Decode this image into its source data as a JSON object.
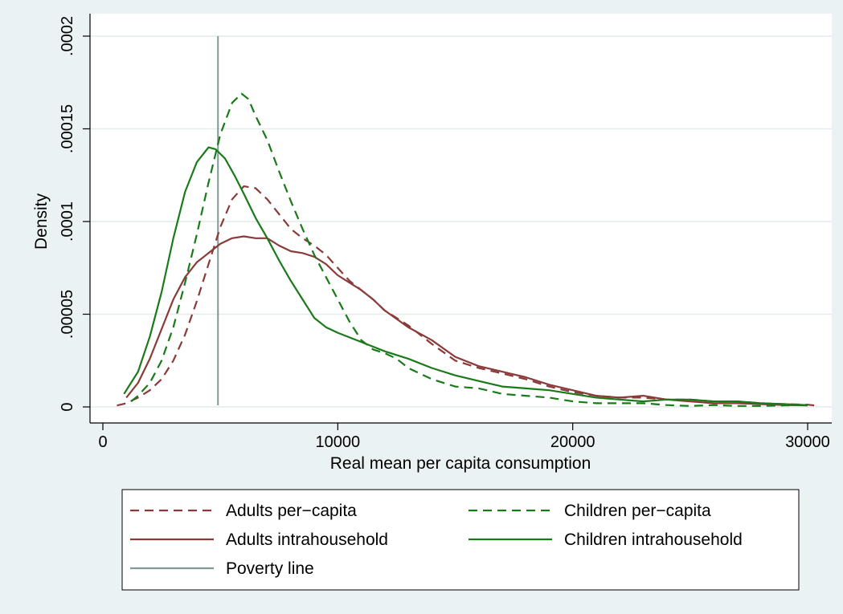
{
  "chart_data": {
    "type": "line",
    "xlabel": "Real mean per capita consumption",
    "ylabel": "Density",
    "xlim": [
      0,
      30000
    ],
    "ylim": [
      0,
      0.0002
    ],
    "x_ticks": [
      {
        "value": 0,
        "label": "0"
      },
      {
        "value": 10000,
        "label": "10000"
      },
      {
        "value": 20000,
        "label": "20000"
      },
      {
        "value": 30000,
        "label": "30000"
      }
    ],
    "y_ticks": [
      {
        "value": 0,
        "label": "0"
      },
      {
        "value": 5e-05,
        "label": ".00005"
      },
      {
        "value": 0.0001,
        "label": ".0001"
      },
      {
        "value": 0.00015,
        "label": ".00015"
      },
      {
        "value": 0.0002,
        "label": ".0002"
      }
    ],
    "grid": true,
    "legend_position": "bottom",
    "vline": {
      "name": "Poverty line",
      "x": 4900,
      "color": "#7f9a94"
    },
    "series": [
      {
        "name": "Adults per−capita",
        "color": "#8b3a3a",
        "dash": "dashed",
        "points": [
          [
            600,
            8e-07
          ],
          [
            1000,
            2e-06
          ],
          [
            1500,
            5e-06
          ],
          [
            2000,
            9e-06
          ],
          [
            2500,
            1.5e-05
          ],
          [
            3000,
            2.5e-05
          ],
          [
            3500,
            3.9e-05
          ],
          [
            4000,
            5.7e-05
          ],
          [
            4500,
            7.7e-05
          ],
          [
            5000,
            9.7e-05
          ],
          [
            5500,
            0.000112
          ],
          [
            6000,
            0.000119
          ],
          [
            6500,
            0.000118
          ],
          [
            7000,
            0.000112
          ],
          [
            7500,
            0.000104
          ],
          [
            8000,
            9.6e-05
          ],
          [
            8500,
            9.1e-05
          ],
          [
            9000,
            8.7e-05
          ],
          [
            9500,
            8.2e-05
          ],
          [
            10000,
            7.5e-05
          ],
          [
            10500,
            6.8e-05
          ],
          [
            11000,
            6.3e-05
          ],
          [
            11500,
            5.8e-05
          ],
          [
            12000,
            5.2e-05
          ],
          [
            13000,
            4.4e-05
          ],
          [
            14000,
            3.4e-05
          ],
          [
            15000,
            2.5e-05
          ],
          [
            16000,
            2.1e-05
          ],
          [
            17000,
            1.8e-05
          ],
          [
            18000,
            1.5e-05
          ],
          [
            19000,
            1.1e-05
          ],
          [
            20000,
            8e-06
          ],
          [
            21000,
            6e-06
          ],
          [
            22000,
            5e-06
          ],
          [
            23000,
            5e-06
          ],
          [
            24000,
            4e-06
          ],
          [
            25000,
            4e-06
          ],
          [
            26000,
            3e-06
          ],
          [
            27000,
            3e-06
          ],
          [
            28000,
            2e-06
          ],
          [
            29000,
            1.5e-06
          ],
          [
            30000,
            1.2e-06
          ],
          [
            30500,
            5e-07
          ]
        ]
      },
      {
        "name": "Adults intrahousehold",
        "color": "#8b3a3a",
        "dash": "solid",
        "points": [
          [
            1000,
            5e-06
          ],
          [
            1500,
            1.3e-05
          ],
          [
            2000,
            2.6e-05
          ],
          [
            2500,
            4.2e-05
          ],
          [
            3000,
            5.8e-05
          ],
          [
            3500,
            7e-05
          ],
          [
            4000,
            7.8e-05
          ],
          [
            4500,
            8.3e-05
          ],
          [
            5000,
            8.8e-05
          ],
          [
            5500,
            9.1e-05
          ],
          [
            6000,
            9.2e-05
          ],
          [
            6500,
            9.1e-05
          ],
          [
            7000,
            9.1e-05
          ],
          [
            7500,
            8.7e-05
          ],
          [
            8000,
            8.4e-05
          ],
          [
            8500,
            8.3e-05
          ],
          [
            9000,
            8.1e-05
          ],
          [
            9500,
            7.7e-05
          ],
          [
            10000,
            7.1e-05
          ],
          [
            10500,
            6.7e-05
          ],
          [
            11000,
            6.3e-05
          ],
          [
            11500,
            5.8e-05
          ],
          [
            12000,
            5.2e-05
          ],
          [
            13000,
            4.3e-05
          ],
          [
            14000,
            3.6e-05
          ],
          [
            15000,
            2.7e-05
          ],
          [
            16000,
            2.2e-05
          ],
          [
            17000,
            1.9e-05
          ],
          [
            18000,
            1.6e-05
          ],
          [
            19000,
            1.2e-05
          ],
          [
            20000,
            9e-06
          ],
          [
            21000,
            6e-06
          ],
          [
            22000,
            5e-06
          ],
          [
            23000,
            6e-06
          ],
          [
            24000,
            4e-06
          ],
          [
            25000,
            3e-06
          ],
          [
            26000,
            2e-06
          ],
          [
            27000,
            2e-06
          ],
          [
            28000,
            1.5e-06
          ],
          [
            29000,
            1e-06
          ],
          [
            30000,
            8e-07
          ]
        ]
      },
      {
        "name": "Children per−capita",
        "color": "#1a7a1a",
        "dash": "dashed",
        "points": [
          [
            1200,
            3e-06
          ],
          [
            1500,
            6e-06
          ],
          [
            2000,
            1.3e-05
          ],
          [
            2500,
            2.5e-05
          ],
          [
            3000,
            4.3e-05
          ],
          [
            3500,
            6.7e-05
          ],
          [
            4000,
            9.3e-05
          ],
          [
            4500,
            0.000121
          ],
          [
            5000,
            0.000147
          ],
          [
            5500,
            0.000164
          ],
          [
            5900,
            0.000169
          ],
          [
            6200,
            0.000166
          ],
          [
            6500,
            0.000157
          ],
          [
            7000,
            0.000144
          ],
          [
            7500,
            0.000127
          ],
          [
            8000,
            0.000111
          ],
          [
            8500,
            9.6e-05
          ],
          [
            9000,
            8.2e-05
          ],
          [
            9500,
            7e-05
          ],
          [
            10000,
            5.8e-05
          ],
          [
            10500,
            4.6e-05
          ],
          [
            11000,
            3.6e-05
          ],
          [
            11500,
            3.1e-05
          ],
          [
            12000,
            2.9e-05
          ],
          [
            12500,
            2.6e-05
          ],
          [
            13000,
            2.1e-05
          ],
          [
            14000,
            1.5e-05
          ],
          [
            15000,
            1.1e-05
          ],
          [
            16000,
            1e-05
          ],
          [
            17000,
            7e-06
          ],
          [
            18000,
            6e-06
          ],
          [
            19000,
            5e-06
          ],
          [
            20000,
            3e-06
          ],
          [
            21000,
            2e-06
          ],
          [
            22000,
            2e-06
          ],
          [
            23000,
            2e-06
          ],
          [
            24000,
            1e-06
          ],
          [
            25000,
            5e-07
          ],
          [
            26000,
            1e-06
          ],
          [
            27000,
            5e-07
          ],
          [
            28000,
            5e-07
          ],
          [
            29000,
            8e-07
          ],
          [
            30000,
            1e-06
          ]
        ]
      },
      {
        "name": "Children intrahousehold",
        "color": "#1a7a1a",
        "dash": "solid",
        "points": [
          [
            900,
            7e-06
          ],
          [
            1500,
            1.9e-05
          ],
          [
            2000,
            3.8e-05
          ],
          [
            2500,
            6.2e-05
          ],
          [
            3000,
            9.1e-05
          ],
          [
            3500,
            0.000116
          ],
          [
            4000,
            0.000132
          ],
          [
            4500,
            0.00014
          ],
          [
            4800,
            0.000139
          ],
          [
            5200,
            0.000134
          ],
          [
            5600,
            0.000125
          ],
          [
            6000,
            0.000115
          ],
          [
            6500,
            0.000102
          ],
          [
            7000,
            9.1e-05
          ],
          [
            7500,
            7.9e-05
          ],
          [
            8000,
            6.8e-05
          ],
          [
            8500,
            5.8e-05
          ],
          [
            9000,
            4.8e-05
          ],
          [
            9500,
            4.3e-05
          ],
          [
            10000,
            4e-05
          ],
          [
            11000,
            3.5e-05
          ],
          [
            12000,
            3e-05
          ],
          [
            13000,
            2.6e-05
          ],
          [
            14000,
            2.1e-05
          ],
          [
            15000,
            1.7e-05
          ],
          [
            16000,
            1.4e-05
          ],
          [
            17000,
            1.1e-05
          ],
          [
            18000,
            1e-05
          ],
          [
            19000,
            9e-06
          ],
          [
            20000,
            7e-06
          ],
          [
            21000,
            5e-06
          ],
          [
            22000,
            4e-06
          ],
          [
            23000,
            3e-06
          ],
          [
            24000,
            4e-06
          ],
          [
            25000,
            4e-06
          ],
          [
            26000,
            3e-06
          ],
          [
            27000,
            3e-06
          ],
          [
            28000,
            2e-06
          ],
          [
            29000,
            1.5e-06
          ],
          [
            30000,
            1e-06
          ]
        ]
      }
    ],
    "legend": [
      {
        "label": "Adults per−capita",
        "color": "#8b3a3a",
        "dash": "dashed"
      },
      {
        "label": "Children per−capita",
        "color": "#1a7a1a",
        "dash": "dashed"
      },
      {
        "label": "Adults intrahousehold",
        "color": "#8b3a3a",
        "dash": "solid"
      },
      {
        "label": "Children intrahousehold",
        "color": "#1a7a1a",
        "dash": "solid"
      },
      {
        "label": "Poverty line",
        "color": "#7f9a94",
        "dash": "solid"
      }
    ],
    "colors": {
      "background": "#eaf2f3",
      "plot_area": "#ffffff",
      "grid": "#e4ecec"
    }
  }
}
